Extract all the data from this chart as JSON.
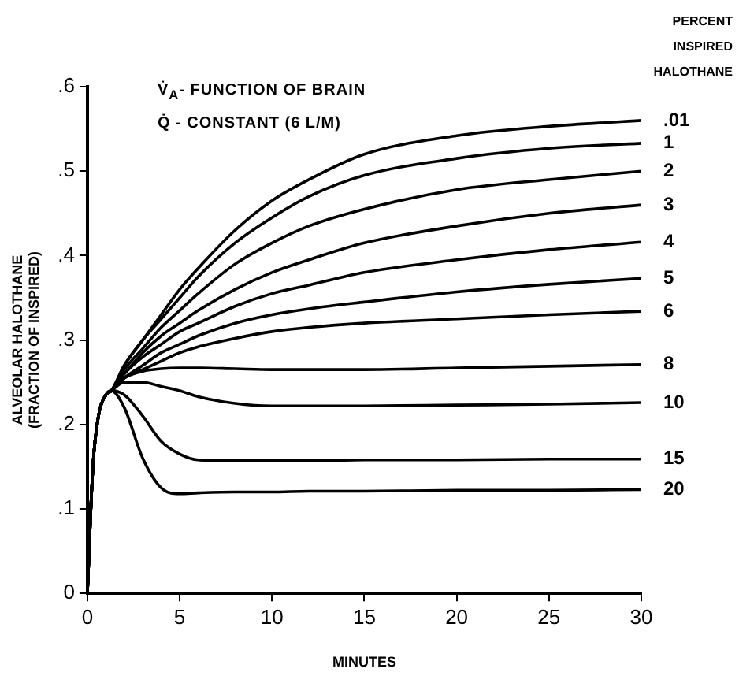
{
  "chart_data": {
    "type": "line",
    "xlabel": "MINUTES",
    "ylabel": "ALVEOLAR HALOTHANE\n(FRACTION OF INSPIRED)",
    "legend_title": "PERCENT\nINSPIRED\nHALOTHANE",
    "annotations": [
      "V̇$_{A}$- FUNCTION OF BRAIN",
      "Q̇ - CONSTANT (6 L/M)"
    ],
    "x": [
      0,
      0.3,
      0.6,
      1,
      1.3,
      2,
      3,
      4,
      5,
      6,
      8,
      10,
      12,
      15,
      20,
      25,
      30
    ],
    "xlim": [
      0,
      30
    ],
    "xticks": [
      0,
      5,
      10,
      15,
      20,
      25,
      30
    ],
    "ylim": [
      0,
      0.6
    ],
    "yticks": [
      0,
      {
        "value": 0.1,
        "label": ".1"
      },
      {
        "value": 0.2,
        "label": ".2"
      },
      {
        "value": 0.3,
        "label": ".3"
      },
      {
        "value": 0.4,
        "label": ".4"
      },
      {
        "value": 0.5,
        "label": ".5"
      },
      {
        "value": 0.6,
        "label": ".6"
      }
    ],
    "grid": false,
    "marker": "none",
    "line_style": "solid",
    "series": [
      {
        "name": ".01",
        "color": "#000000",
        "values": [
          0,
          0.15,
          0.21,
          0.235,
          0.24,
          0.27,
          0.3,
          0.33,
          0.36,
          0.385,
          0.43,
          0.465,
          0.49,
          0.52,
          0.542,
          0.553,
          0.56
        ]
      },
      {
        "name": "1",
        "color": "#000000",
        "values": [
          0,
          0.15,
          0.21,
          0.235,
          0.24,
          0.27,
          0.3,
          0.325,
          0.35,
          0.375,
          0.415,
          0.445,
          0.47,
          0.495,
          0.515,
          0.527,
          0.533
        ]
      },
      {
        "name": "2",
        "color": "#000000",
        "values": [
          0,
          0.15,
          0.21,
          0.235,
          0.24,
          0.265,
          0.29,
          0.315,
          0.335,
          0.355,
          0.39,
          0.415,
          0.435,
          0.455,
          0.478,
          0.49,
          0.5
        ]
      },
      {
        "name": "3",
        "color": "#000000",
        "values": [
          0,
          0.15,
          0.21,
          0.235,
          0.24,
          0.26,
          0.285,
          0.305,
          0.32,
          0.335,
          0.36,
          0.38,
          0.395,
          0.415,
          0.435,
          0.45,
          0.46
        ]
      },
      {
        "name": "4",
        "color": "#000000",
        "values": [
          0,
          0.15,
          0.21,
          0.235,
          0.24,
          0.26,
          0.28,
          0.295,
          0.31,
          0.32,
          0.34,
          0.355,
          0.365,
          0.38,
          0.395,
          0.407,
          0.416
        ]
      },
      {
        "name": "5",
        "color": "#000000",
        "values": [
          0,
          0.15,
          0.21,
          0.235,
          0.24,
          0.255,
          0.27,
          0.285,
          0.295,
          0.305,
          0.32,
          0.33,
          0.337,
          0.345,
          0.357,
          0.366,
          0.373
        ]
      },
      {
        "name": "6",
        "color": "#000000",
        "values": [
          0,
          0.15,
          0.21,
          0.235,
          0.24,
          0.255,
          0.265,
          0.275,
          0.285,
          0.292,
          0.302,
          0.31,
          0.315,
          0.32,
          0.325,
          0.33,
          0.334
        ]
      },
      {
        "name": "8",
        "color": "#000000",
        "values": [
          0,
          0.15,
          0.21,
          0.235,
          0.24,
          0.255,
          0.263,
          0.266,
          0.267,
          0.267,
          0.266,
          0.265,
          0.265,
          0.265,
          0.267,
          0.269,
          0.271
        ]
      },
      {
        "name": "10",
        "color": "#000000",
        "values": [
          0,
          0.15,
          0.21,
          0.235,
          0.24,
          0.25,
          0.25,
          0.245,
          0.24,
          0.233,
          0.225,
          0.222,
          0.222,
          0.222,
          0.223,
          0.224,
          0.226
        ]
      },
      {
        "name": "15",
        "color": "#000000",
        "values": [
          0,
          0.15,
          0.21,
          0.235,
          0.24,
          0.235,
          0.21,
          0.18,
          0.165,
          0.158,
          0.157,
          0.157,
          0.157,
          0.158,
          0.158,
          0.159,
          0.159
        ]
      },
      {
        "name": "20",
        "color": "#000000",
        "values": [
          0,
          0.15,
          0.21,
          0.235,
          0.24,
          0.22,
          0.16,
          0.125,
          0.118,
          0.119,
          0.12,
          0.12,
          0.121,
          0.121,
          0.122,
          0.122,
          0.123
        ]
      }
    ]
  }
}
